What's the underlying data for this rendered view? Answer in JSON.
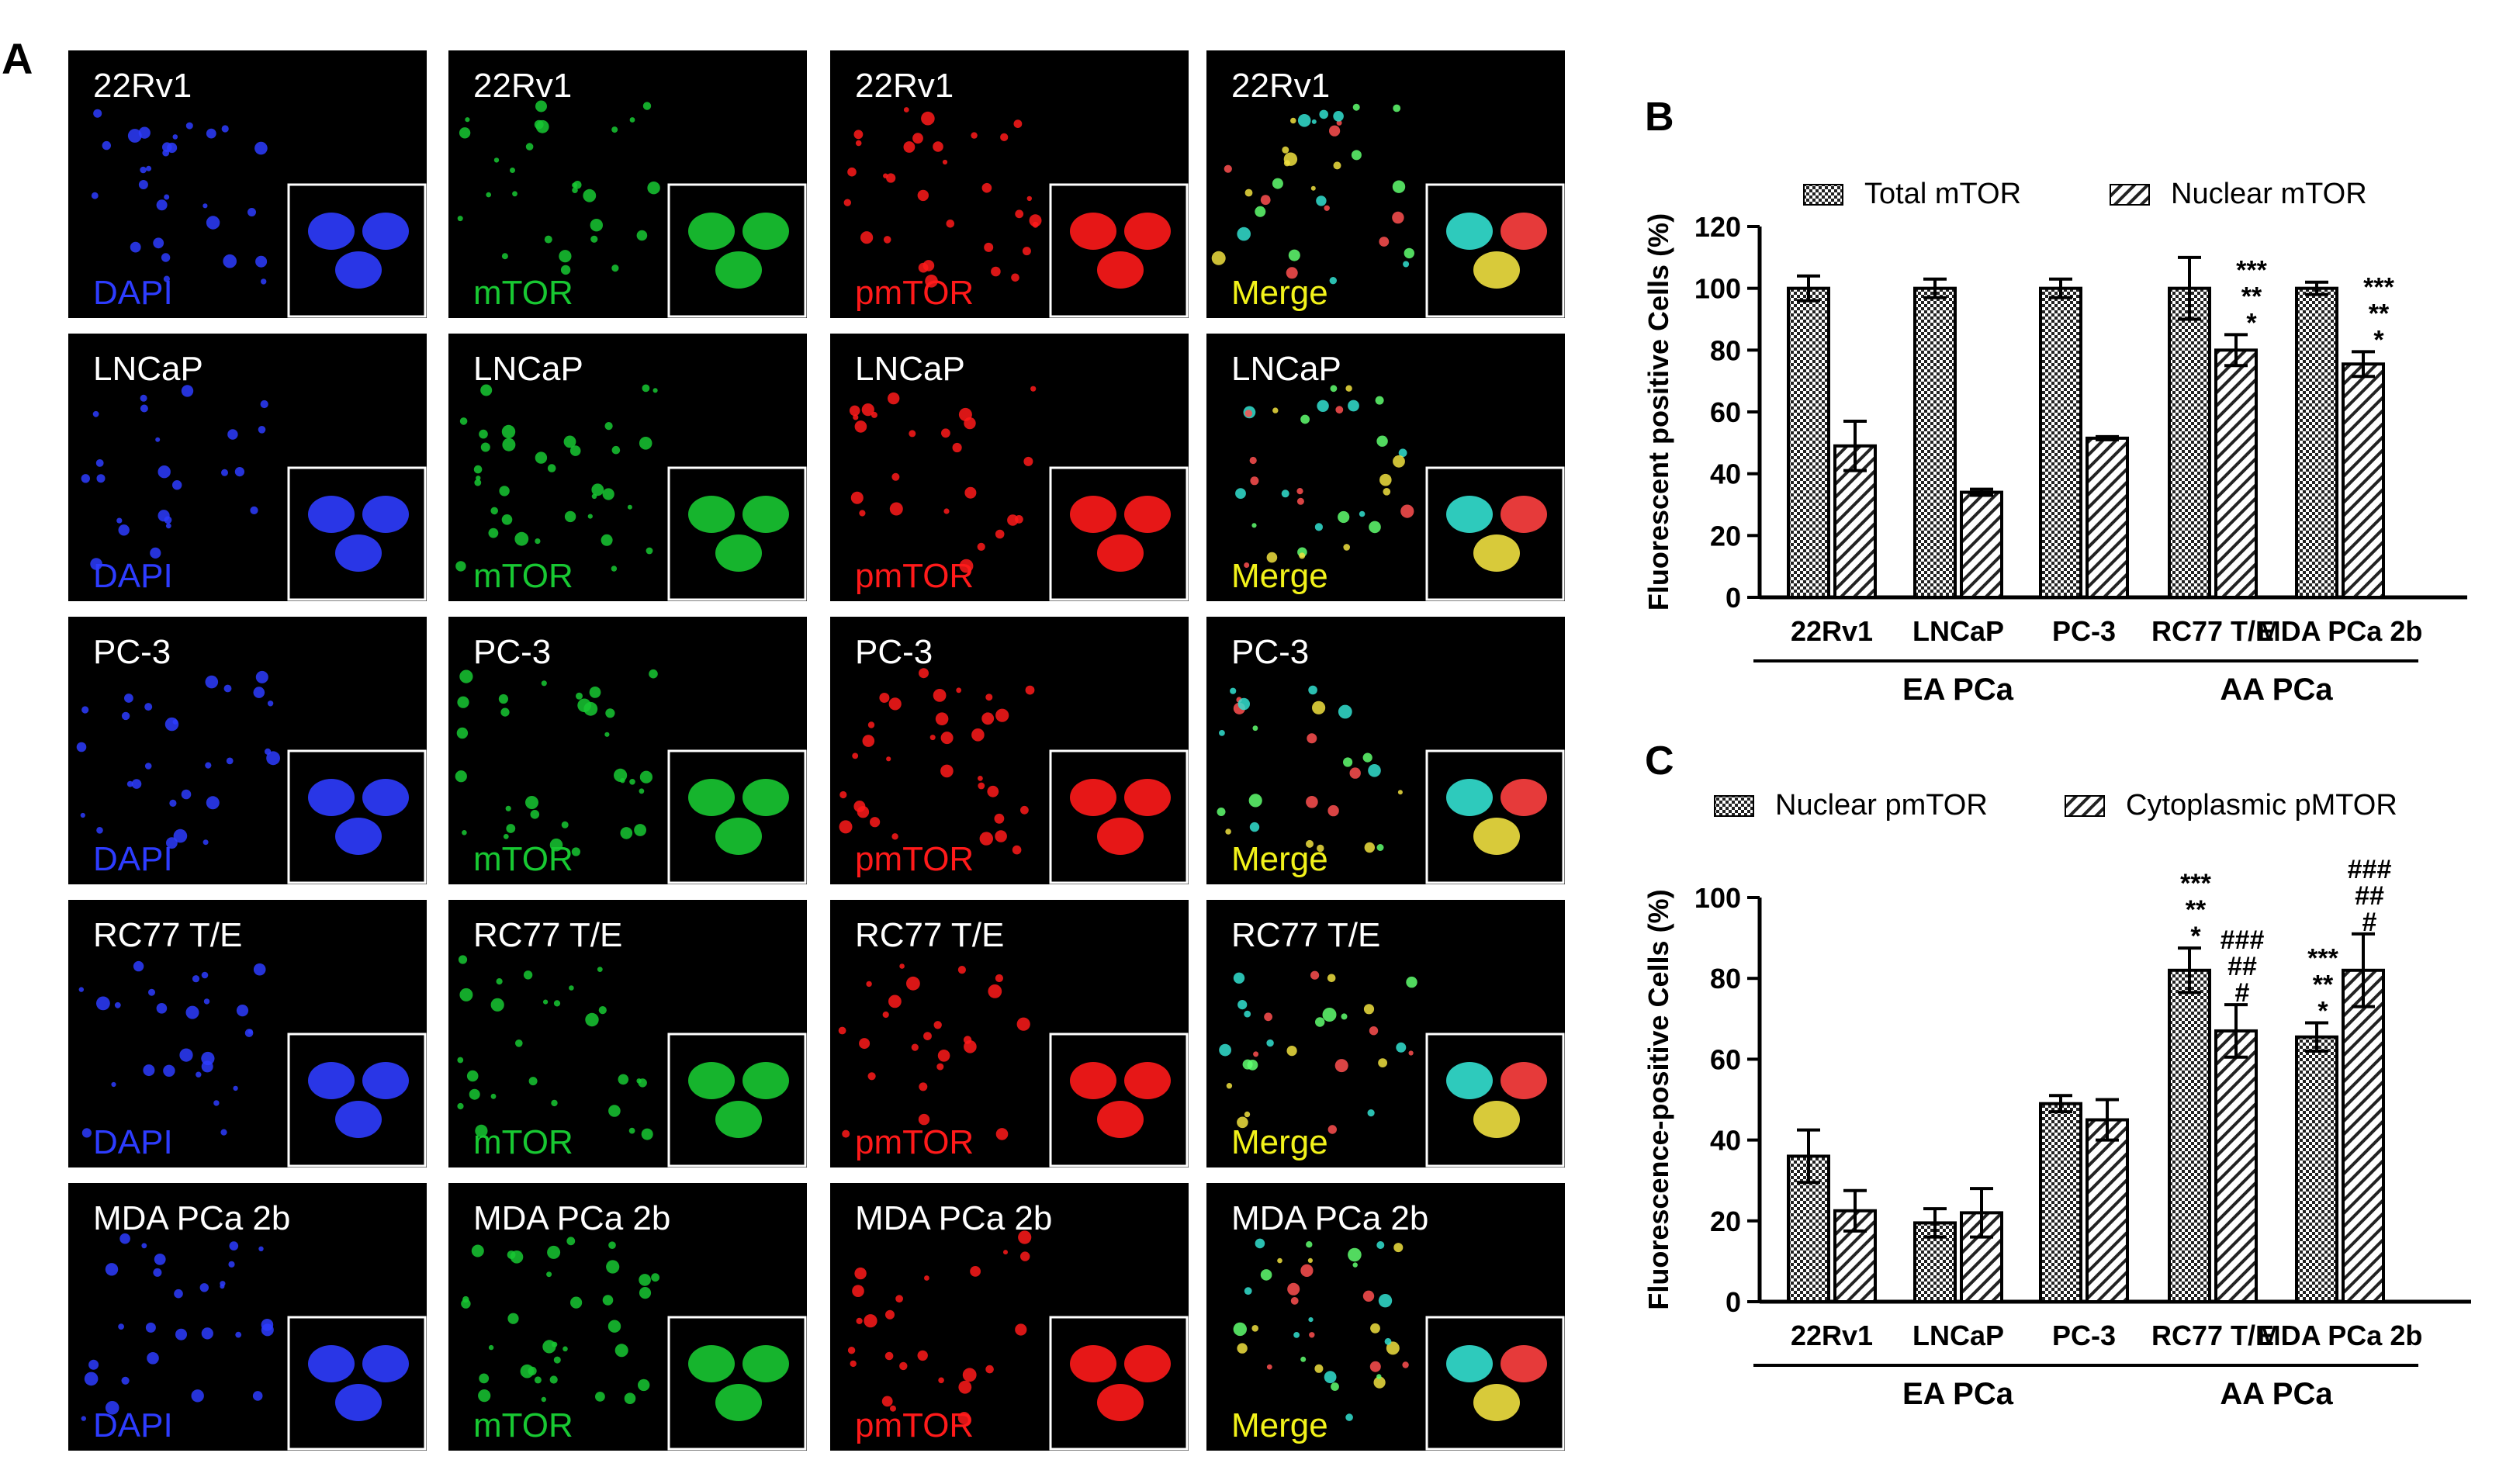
{
  "panel_labels": {
    "a": "A",
    "b": "B",
    "c": "C"
  },
  "micrographs": {
    "rows": [
      {
        "cell_line": "22Rv1"
      },
      {
        "cell_line": "LNCaP"
      },
      {
        "cell_line": "PC-3"
      },
      {
        "cell_line": "RC77 T/E"
      },
      {
        "cell_line": "MDA PCa 2b"
      }
    ],
    "channels": [
      {
        "name": "DAPI",
        "color": "#2d3cff"
      },
      {
        "name": "mTOR",
        "color": "#18c832"
      },
      {
        "name": "pmTOR",
        "color": "#ff1a1a"
      },
      {
        "name": "Merge",
        "color": "#f2f21a"
      }
    ],
    "title_color": "#ffffff",
    "background": "#000000"
  },
  "chart_data": [
    {
      "type": "bar",
      "panel": "B",
      "title": "",
      "xlabel": "",
      "ylabel": "Fluorescent positive  Cells (%)",
      "ylim": [
        0,
        120
      ],
      "yticks": [
        "0",
        "20",
        "40",
        "60",
        "80",
        "100",
        "120"
      ],
      "categories": [
        "22Rv1",
        "LNCaP",
        "PC-3",
        "RC77  T/E",
        "MDA  PCa  2b"
      ],
      "series": [
        {
          "name": "Total mTOR",
          "pattern": "crosshatch",
          "values": [
            100,
            100,
            100,
            100,
            100
          ],
          "errors": [
            4,
            3,
            3,
            10,
            2
          ]
        },
        {
          "name": "Nuclear mTOR",
          "pattern": "diagonal",
          "values": [
            49,
            34,
            51.5,
            80,
            75.5
          ],
          "errors": [
            8,
            1,
            0.5,
            5,
            4
          ]
        }
      ],
      "significance": [
        {
          "category": "RC77  T/E",
          "marks": [
            "***",
            "**",
            "*"
          ]
        },
        {
          "category": "MDA  PCa  2b",
          "marks": [
            "***",
            "**",
            "*"
          ]
        }
      ],
      "groups": [
        {
          "label": "EA PCa",
          "categories": [
            "22Rv1",
            "LNCaP",
            "PC-3"
          ]
        },
        {
          "label": "AA PCa",
          "categories": [
            "RC77  T/E",
            "MDA  PCa  2b"
          ]
        }
      ]
    },
    {
      "type": "bar",
      "panel": "C",
      "title": "",
      "xlabel": "",
      "ylabel": "Fluorescence-positive Cells (%)",
      "ylim": [
        0,
        100
      ],
      "yticks": [
        "0",
        "20",
        "40",
        "60",
        "80",
        "100"
      ],
      "categories": [
        "22Rv1",
        "LNCaP",
        "PC-3",
        "RC77  T/E",
        "MDA  PCa  2b"
      ],
      "series": [
        {
          "name": "Nuclear pmTOR",
          "pattern": "crosshatch",
          "values": [
            36,
            19.5,
            49,
            82,
            65.5
          ],
          "errors": [
            6.5,
            3.5,
            2,
            5.5,
            3.5
          ]
        },
        {
          "name": "Cytoplasmic pMTOR",
          "pattern": "diagonal",
          "values": [
            22.5,
            22,
            45,
            67,
            82
          ],
          "errors": [
            5,
            6,
            5,
            6.5,
            9
          ]
        }
      ],
      "significance": [
        {
          "category": "RC77  T/E",
          "series": 0,
          "marks": [
            "***",
            "**",
            "*"
          ]
        },
        {
          "category": "RC77  T/E",
          "series": 1,
          "marks": [
            "###",
            "##",
            "#"
          ]
        },
        {
          "category": "MDA  PCa  2b",
          "series": 0,
          "marks": [
            "***",
            "**",
            "*"
          ]
        },
        {
          "category": "MDA  PCa  2b",
          "series": 1,
          "marks": [
            "###",
            "##",
            "#"
          ]
        }
      ],
      "groups": [
        {
          "label": "EA PCa",
          "categories": [
            "22Rv1",
            "LNCaP",
            "PC-3"
          ]
        },
        {
          "label": "AA PCa",
          "categories": [
            "RC77  T/E",
            "MDA  PCa  2b"
          ]
        }
      ]
    }
  ]
}
